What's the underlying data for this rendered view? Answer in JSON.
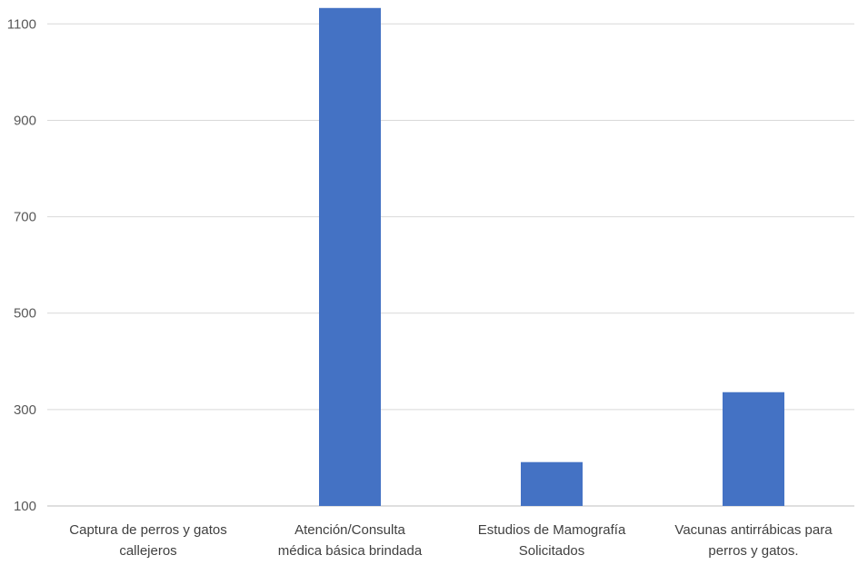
{
  "chart_data": {
    "type": "bar",
    "categories": [
      [
        "Captura de perros y gatos",
        "callejeros"
      ],
      [
        "Atención/Consulta",
        "médica básica brindada"
      ],
      [
        "Estudios de Mamografía",
        "Solicitados"
      ],
      [
        "Vacunas antirrábicas para",
        "perros y gatos."
      ]
    ],
    "values": [
      100,
      1133,
      191,
      336
    ],
    "ylim": [
      100,
      1133
    ],
    "yticks": [
      "100",
      "300",
      "500",
      "700",
      "900",
      "1100"
    ],
    "grid": true,
    "bar_color": "#4472C4"
  }
}
